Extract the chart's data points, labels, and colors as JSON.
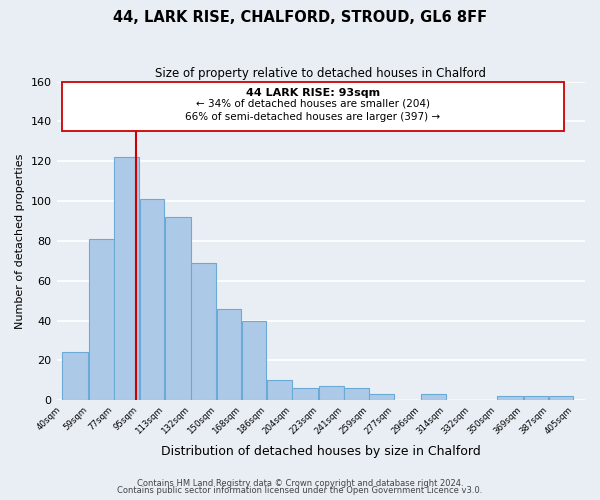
{
  "title": "44, LARK RISE, CHALFORD, STROUD, GL6 8FF",
  "subtitle": "Size of property relative to detached houses in Chalford",
  "xlabel": "Distribution of detached houses by size in Chalford",
  "ylabel": "Number of detached properties",
  "bar_left_edges": [
    40,
    59,
    77,
    95,
    113,
    132,
    150,
    168,
    186,
    204,
    223,
    241,
    259,
    277,
    296,
    314,
    332,
    350,
    369,
    387
  ],
  "bar_heights": [
    24,
    81,
    122,
    101,
    92,
    69,
    46,
    40,
    10,
    6,
    7,
    6,
    3,
    0,
    3,
    0,
    0,
    2,
    2,
    2
  ],
  "bar_widths": [
    19,
    18,
    18,
    18,
    19,
    18,
    18,
    18,
    18,
    19,
    18,
    18,
    18,
    19,
    18,
    18,
    18,
    19,
    18,
    18
  ],
  "tick_labels": [
    "40sqm",
    "59sqm",
    "77sqm",
    "95sqm",
    "113sqm",
    "132sqm",
    "150sqm",
    "168sqm",
    "186sqm",
    "204sqm",
    "223sqm",
    "241sqm",
    "259sqm",
    "277sqm",
    "296sqm",
    "314sqm",
    "332sqm",
    "350sqm",
    "369sqm",
    "387sqm",
    "405sqm"
  ],
  "bar_color": "#adc9e8",
  "bar_edge_color": "#6aaad4",
  "property_line_x": 93,
  "ylim": [
    0,
    160
  ],
  "yticks": [
    0,
    20,
    40,
    60,
    80,
    100,
    120,
    140,
    160
  ],
  "annotation_title": "44 LARK RISE: 93sqm",
  "annotation_line1": "← 34% of detached houses are smaller (204)",
  "annotation_line2": "66% of semi-detached houses are larger (397) →",
  "footer1": "Contains HM Land Registry data © Crown copyright and database right 2024.",
  "footer2": "Contains public sector information licensed under the Open Government Licence v3.0.",
  "background_color": "#e8eef4",
  "grid_color": "#ffffff",
  "box_color": "#cc0000"
}
